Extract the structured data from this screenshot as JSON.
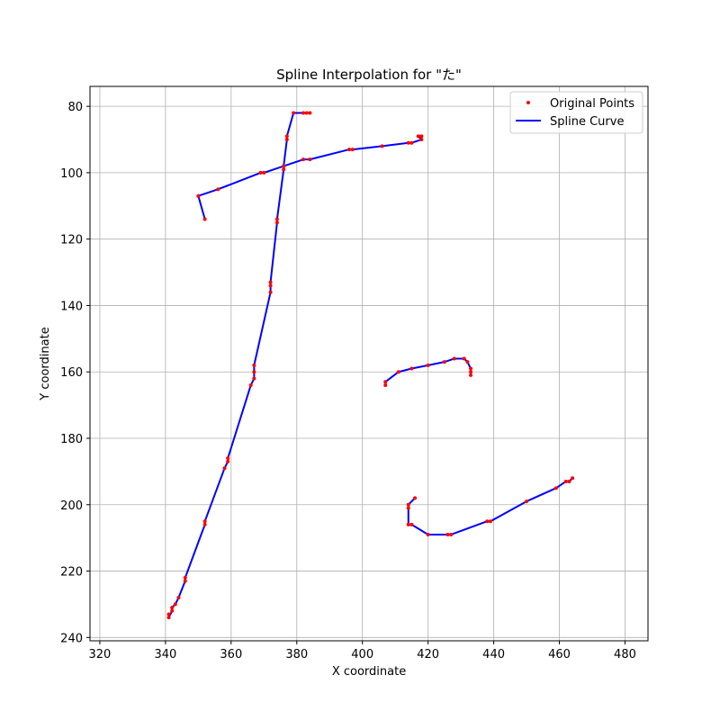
{
  "chart_data": {
    "type": "line",
    "title": "Spline Interpolation for \"た\"",
    "xlabel": "X coordinate",
    "ylabel": "Y coordinate",
    "xlim": [
      317,
      487
    ],
    "ylim": [
      241,
      74
    ],
    "y_inverted": true,
    "xticks": [
      320,
      340,
      360,
      380,
      400,
      420,
      440,
      460,
      480
    ],
    "yticks": [
      80,
      100,
      120,
      140,
      160,
      180,
      200,
      220,
      240
    ],
    "grid": true,
    "legend_position": "top-right",
    "legend": [
      {
        "label": "Original Points",
        "marker": "dot",
        "color": "#ff0000"
      },
      {
        "label": "Spline Curve",
        "marker": "line",
        "color": "#0000ff"
      }
    ],
    "strokes": [
      {
        "points": [
          [
            352,
            114
          ],
          [
            350,
            107
          ],
          [
            356,
            105
          ],
          [
            369,
            100
          ],
          [
            370,
            100
          ],
          [
            382,
            96
          ],
          [
            384,
            96
          ],
          [
            396,
            93
          ],
          [
            397,
            93
          ],
          [
            406,
            92
          ],
          [
            414,
            91
          ],
          [
            415,
            91
          ],
          [
            418,
            90
          ],
          [
            417,
            89
          ],
          [
            418,
            89
          ]
        ]
      },
      {
        "points": [
          [
            384,
            82
          ],
          [
            383,
            82
          ],
          [
            382,
            82
          ],
          [
            379,
            82
          ],
          [
            377,
            89
          ],
          [
            377,
            90
          ],
          [
            376,
            98
          ],
          [
            376,
            99
          ],
          [
            374,
            114
          ],
          [
            374,
            115
          ],
          [
            372,
            133
          ],
          [
            372,
            134
          ],
          [
            372,
            136
          ],
          [
            367,
            158
          ],
          [
            367,
            160
          ],
          [
            367,
            162
          ],
          [
            366,
            164
          ],
          [
            359,
            186
          ],
          [
            359,
            187
          ],
          [
            358,
            189
          ],
          [
            352,
            205
          ],
          [
            352,
            206
          ],
          [
            346,
            222
          ],
          [
            346,
            223
          ],
          [
            344,
            228
          ],
          [
            343,
            230
          ],
          [
            342,
            231
          ],
          [
            342,
            232
          ],
          [
            341,
            234
          ],
          [
            341,
            233
          ]
        ]
      },
      {
        "points": [
          [
            407,
            164
          ],
          [
            407,
            163
          ],
          [
            411,
            160
          ],
          [
            415,
            159
          ],
          [
            420,
            158
          ],
          [
            425,
            157
          ],
          [
            428,
            156
          ],
          [
            431,
            156
          ],
          [
            432,
            157
          ],
          [
            433,
            159
          ],
          [
            433,
            160
          ],
          [
            433,
            161
          ]
        ]
      },
      {
        "points": [
          [
            416,
            198
          ],
          [
            414,
            200
          ],
          [
            414,
            201
          ],
          [
            414,
            206
          ],
          [
            415,
            206
          ],
          [
            420,
            209
          ],
          [
            426,
            209
          ],
          [
            427,
            209
          ],
          [
            438,
            205
          ],
          [
            439,
            205
          ],
          [
            450,
            199
          ],
          [
            459,
            195
          ],
          [
            462,
            193
          ],
          [
            463,
            193
          ],
          [
            464,
            192
          ]
        ]
      }
    ]
  },
  "colors": {
    "point": "#ff0000",
    "curve": "#0000ff",
    "grid": "#b0b0b0"
  }
}
